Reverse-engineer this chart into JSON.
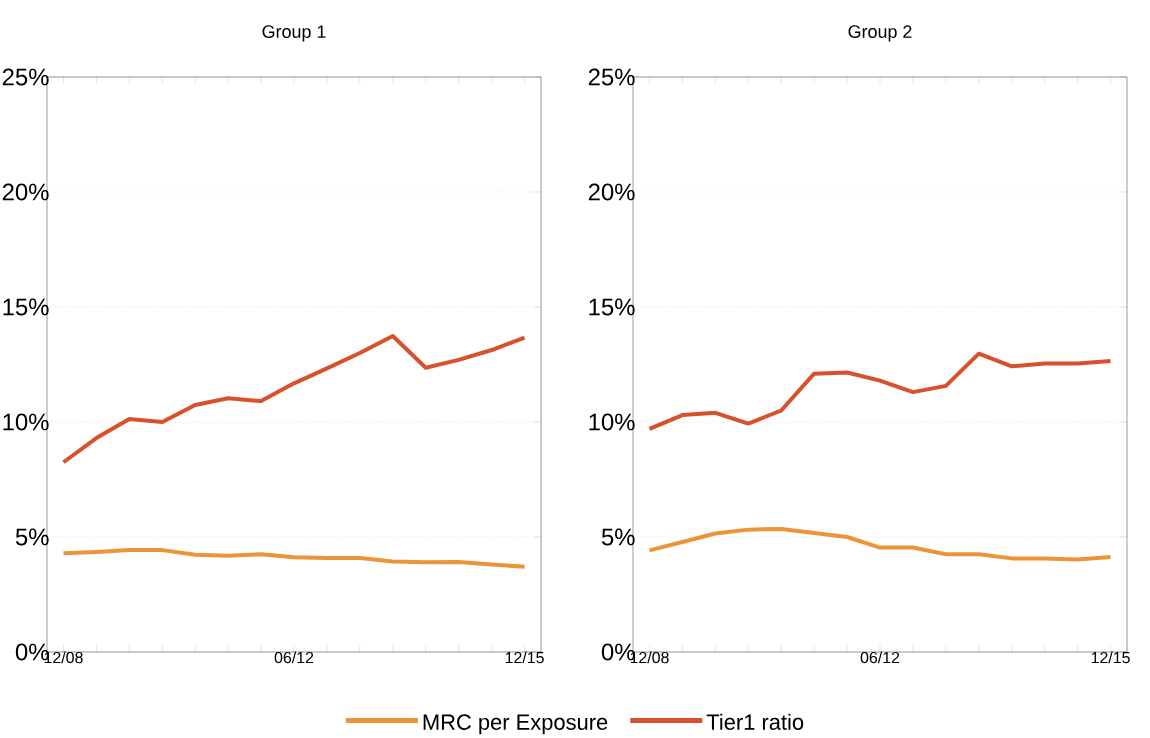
{
  "chart_data": [
    {
      "type": "line",
      "title": "Group 1",
      "categories": [
        "12/08",
        null,
        null,
        null,
        null,
        null,
        null,
        "06/12",
        null,
        null,
        null,
        null,
        null,
        null,
        "12/15"
      ],
      "series": [
        {
          "name": "MRC per Exposure",
          "color": "#ed9438",
          "values": [
            4.29,
            4.35,
            4.43,
            4.43,
            4.23,
            4.19,
            4.25,
            4.12,
            4.09,
            4.09,
            3.93,
            3.9,
            3.91,
            3.8,
            3.71
          ]
        },
        {
          "name": "Tier1 ratio",
          "color": "#d9512c",
          "values": [
            8.25,
            9.3,
            10.13,
            10.0,
            10.74,
            11.03,
            10.91,
            11.68,
            12.33,
            13.0,
            13.74,
            12.36,
            12.7,
            13.13,
            13.67
          ]
        }
      ],
      "ylim": [
        0,
        25
      ],
      "yticks": [
        {
          "value": 0,
          "label": "0%"
        },
        {
          "value": 5,
          "label": "5%"
        },
        {
          "value": 10,
          "label": "10%"
        },
        {
          "value": 15,
          "label": "15%"
        },
        {
          "value": 20,
          "label": "20%"
        },
        {
          "value": 25,
          "label": "25%"
        }
      ],
      "grid": "y",
      "legend": "bottom",
      "marker": "none",
      "line_style": "solid"
    },
    {
      "type": "line",
      "title": "Group 2",
      "categories": [
        "12/08",
        null,
        null,
        null,
        null,
        null,
        null,
        "06/12",
        null,
        null,
        null,
        null,
        null,
        null,
        "12/15"
      ],
      "series": [
        {
          "color": "#ed9438",
          "values": [
            4.42,
            4.78,
            5.15,
            5.32,
            5.35,
            5.17,
            5.0,
            4.54,
            4.54,
            4.25,
            4.25,
            4.07,
            4.07,
            4.02,
            4.13
          ]
        },
        {
          "color": "#d9512c",
          "values": [
            9.7,
            10.3,
            10.4,
            9.93,
            10.5,
            12.1,
            12.15,
            11.8,
            11.3,
            11.57,
            12.97,
            12.42,
            12.54,
            12.54,
            12.65
          ]
        }
      ],
      "ylim": [
        0,
        25
      ],
      "yticks": [
        {
          "value": 0,
          "label": "0%"
        },
        {
          "value": 5,
          "label": "5%"
        },
        {
          "value": 10,
          "label": "10%"
        },
        {
          "value": 15,
          "label": "15%"
        },
        {
          "value": 20,
          "label": "20%"
        },
        {
          "value": 25,
          "label": "25%"
        }
      ],
      "grid": "y",
      "marker": "none",
      "line_style": "solid"
    }
  ]
}
